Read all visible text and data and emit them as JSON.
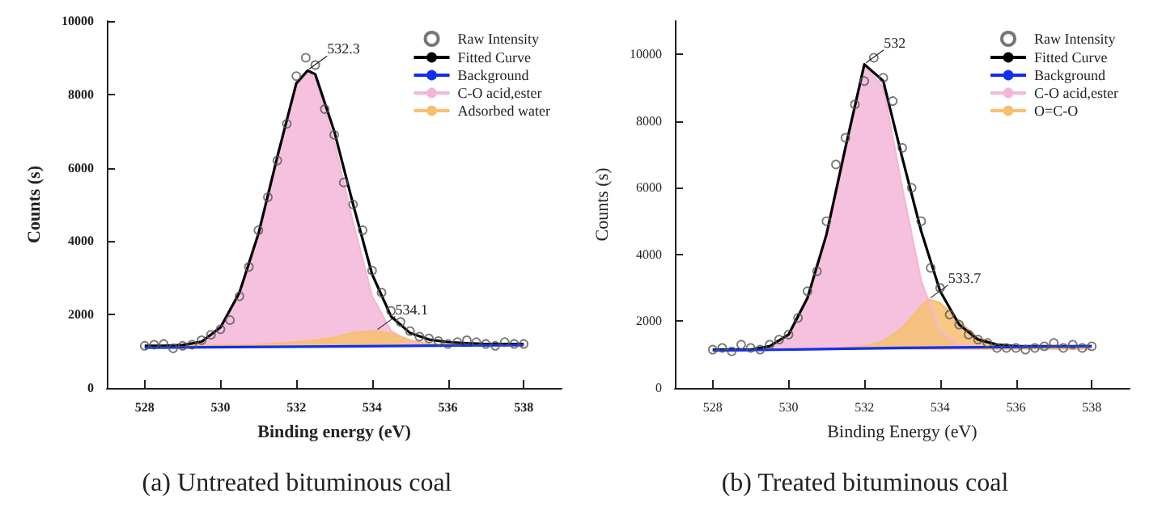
{
  "chart_data": [
    {
      "type": "line",
      "title": "(a) Untreated bituminous coal",
      "xlabel": "Binding energy (eV)",
      "ylabel": "Counts (s)",
      "xlim": [
        527,
        539
      ],
      "xticks": [
        528,
        530,
        532,
        534,
        536,
        538
      ],
      "ylim": [
        0,
        10000
      ],
      "yticks": [
        0,
        2000,
        4000,
        6000,
        8000,
        10000
      ],
      "grid": false,
      "legend": "top right",
      "annotations": [
        {
          "text": "532.3",
          "x": 532.3,
          "y": 8650
        },
        {
          "text": "534.1",
          "x": 534.1,
          "y": 1550
        }
      ],
      "series": [
        {
          "name": "Raw Intensity",
          "type": "scatter",
          "marker": "circle",
          "color": "#555555",
          "x": [
            528,
            528.25,
            528.5,
            528.75,
            529,
            529.25,
            529.5,
            529.75,
            530,
            530.25,
            530.5,
            530.75,
            531,
            531.25,
            531.5,
            531.75,
            532,
            532.25,
            532.5,
            532.75,
            533,
            533.25,
            533.5,
            533.75,
            534,
            534.25,
            534.5,
            534.75,
            535,
            535.25,
            535.5,
            535.75,
            536,
            536.25,
            536.5,
            536.75,
            537,
            537.25,
            537.5,
            537.75,
            538
          ],
          "values": [
            1150,
            1180,
            1200,
            1080,
            1150,
            1180,
            1300,
            1450,
            1600,
            1850,
            2500,
            3300,
            4300,
            5200,
            6200,
            7200,
            8500,
            9000,
            8800,
            7600,
            6900,
            5600,
            5000,
            4300,
            3200,
            2600,
            2100,
            1800,
            1550,
            1400,
            1350,
            1280,
            1200,
            1250,
            1300,
            1250,
            1200,
            1150,
            1250,
            1200,
            1200
          ]
        },
        {
          "name": "Fitted Curve",
          "type": "line",
          "color": "#000000",
          "x": [
            528,
            528.5,
            529,
            529.5,
            530,
            530.5,
            531,
            531.5,
            532,
            532.3,
            532.5,
            533,
            533.5,
            534,
            534.5,
            535,
            535.5,
            536,
            536.5,
            537,
            537.5,
            538
          ],
          "values": [
            1150,
            1150,
            1170,
            1260,
            1650,
            2600,
            4200,
            6300,
            8300,
            8650,
            8550,
            7000,
            5000,
            3100,
            1950,
            1500,
            1320,
            1250,
            1220,
            1200,
            1200,
            1200
          ]
        },
        {
          "name": "Background",
          "type": "line",
          "color": "#1030f0",
          "x": [
            528,
            533,
            538
          ],
          "values": [
            1100,
            1130,
            1170
          ]
        },
        {
          "name": "C-O acid,ester",
          "type": "area",
          "color": "#f4b6d8",
          "x": [
            528,
            529,
            529.5,
            530,
            530.5,
            531,
            531.5,
            532,
            532.3,
            532.5,
            533,
            533.5,
            534,
            534.5,
            535,
            535.5,
            536,
            537,
            538
          ],
          "values": [
            1130,
            1140,
            1230,
            1620,
            2560,
            4150,
            6250,
            8250,
            8600,
            8450,
            6700,
            4500,
            2500,
            1550,
            1250,
            1170,
            1160,
            1170,
            1180
          ]
        },
        {
          "name": "Adsorbed water",
          "type": "area",
          "color": "#f6c070",
          "x": [
            528,
            530,
            531,
            532,
            532.5,
            533,
            533.5,
            534,
            534.5,
            535,
            535.5,
            536,
            538
          ],
          "values": [
            1130,
            1160,
            1180,
            1250,
            1300,
            1380,
            1500,
            1550,
            1500,
            1300,
            1200,
            1170,
            1180
          ]
        }
      ]
    },
    {
      "type": "line",
      "title": "(b) Treated bituminous coal",
      "xlabel": "Binding Energy (eV)",
      "ylabel": "Counts (s)",
      "xlim": [
        527,
        539
      ],
      "xticks": [
        528,
        530,
        532,
        534,
        536,
        538
      ],
      "ylim": [
        0,
        11000
      ],
      "yticks": [
        0,
        2000,
        4000,
        6000,
        8000,
        10000
      ],
      "grid": false,
      "legend": "top right",
      "annotations": [
        {
          "text": "532",
          "x": 532,
          "y": 9700
        },
        {
          "text": "533.7",
          "x": 533.7,
          "y": 2650
        }
      ],
      "series": [
        {
          "name": "Raw Intensity",
          "type": "scatter",
          "marker": "circle",
          "color": "#555555",
          "x": [
            528,
            528.25,
            528.5,
            528.75,
            529,
            529.25,
            529.5,
            529.75,
            530,
            530.25,
            530.5,
            530.75,
            531,
            531.25,
            531.5,
            531.75,
            532,
            532.25,
            532.5,
            532.75,
            533,
            533.25,
            533.5,
            533.75,
            534,
            534.25,
            534.5,
            534.75,
            535,
            535.25,
            535.5,
            535.75,
            536,
            536.25,
            536.5,
            536.75,
            537,
            537.25,
            537.5,
            537.75,
            538
          ],
          "values": [
            1150,
            1200,
            1100,
            1300,
            1200,
            1150,
            1300,
            1450,
            1600,
            2100,
            2900,
            3500,
            5000,
            6700,
            7500,
            8500,
            9200,
            9900,
            9300,
            8600,
            7200,
            6000,
            5000,
            3600,
            3000,
            2200,
            1900,
            1600,
            1450,
            1350,
            1200,
            1200,
            1200,
            1150,
            1200,
            1250,
            1350,
            1200,
            1300,
            1200,
            1250
          ]
        },
        {
          "name": "Fitted Curve",
          "type": "line",
          "color": "#000000",
          "x": [
            528,
            529,
            529.5,
            530,
            530.5,
            531,
            531.5,
            532,
            532.5,
            533,
            533.5,
            534,
            534.5,
            535,
            535.5,
            536,
            537,
            538
          ],
          "values": [
            1150,
            1150,
            1250,
            1600,
            2700,
            4600,
            7200,
            9700,
            9200,
            6900,
            4700,
            2900,
            1900,
            1450,
            1300,
            1250,
            1250,
            1250
          ]
        },
        {
          "name": "Background",
          "type": "line",
          "color": "#1030f0",
          "x": [
            528,
            533,
            538
          ],
          "values": [
            1120,
            1200,
            1250
          ]
        },
        {
          "name": "C-O acid,ester",
          "type": "area",
          "color": "#f4b6d8",
          "x": [
            528,
            529,
            529.5,
            530,
            530.5,
            531,
            531.5,
            532,
            532.5,
            533,
            533.5,
            534,
            534.5,
            535,
            536,
            538
          ],
          "values": [
            1150,
            1150,
            1250,
            1600,
            2700,
            4600,
            7200,
            9650,
            9000,
            6000,
            3200,
            1700,
            1300,
            1220,
            1230,
            1250
          ]
        },
        {
          "name": "O=C-O",
          "type": "area",
          "color": "#f6c070",
          "x": [
            528,
            531,
            532,
            532.5,
            533,
            533.5,
            533.7,
            534,
            534.5,
            535,
            535.5,
            536,
            538
          ],
          "values": [
            1150,
            1170,
            1250,
            1400,
            1800,
            2450,
            2650,
            2550,
            2000,
            1500,
            1280,
            1230,
            1250
          ]
        }
      ]
    }
  ]
}
